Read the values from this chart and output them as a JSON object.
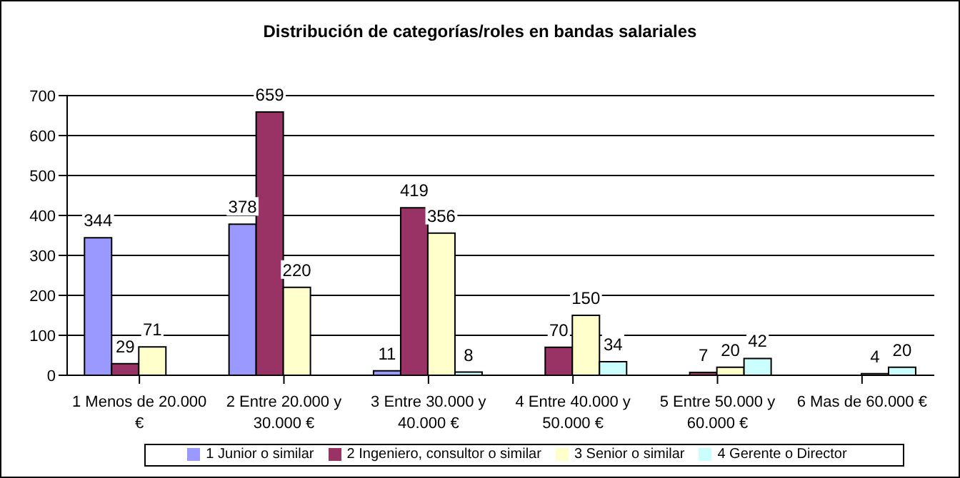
{
  "chart_data": {
    "type": "bar",
    "title": "Distribución de categorías/roles en bandas salariales",
    "categories": [
      "1 Menos de 20.000 €",
      "2 Entre 20.000 y 30.000 €",
      "3 Entre 30.000 y 40.000 €",
      "4 Entre 40.000 y 50.000 €",
      "5 Entre 50.000 y 60.000 €",
      "6 Mas de 60.000 €"
    ],
    "series": [
      {
        "name": "1 Junior o similar",
        "color": "#9999ff",
        "values": [
          344,
          378,
          11,
          null,
          null,
          null
        ]
      },
      {
        "name": "2 Ingeniero, consultor o similar",
        "color": "#993366",
        "values": [
          29,
          659,
          419,
          70,
          7,
          null
        ]
      },
      {
        "name": "3 Senior o similar",
        "color": "#ffffcc",
        "values": [
          71,
          220,
          356,
          150,
          20,
          4
        ]
      },
      {
        "name": "4 Gerente o Director",
        "color": "#ccffff",
        "values": [
          null,
          null,
          8,
          34,
          42,
          20
        ]
      }
    ],
    "ylim": [
      0,
      700
    ],
    "yticks": [
      0,
      100,
      200,
      300,
      400,
      500,
      600,
      700
    ],
    "grid": "y",
    "legend": "bottom",
    "data_labels": true
  }
}
